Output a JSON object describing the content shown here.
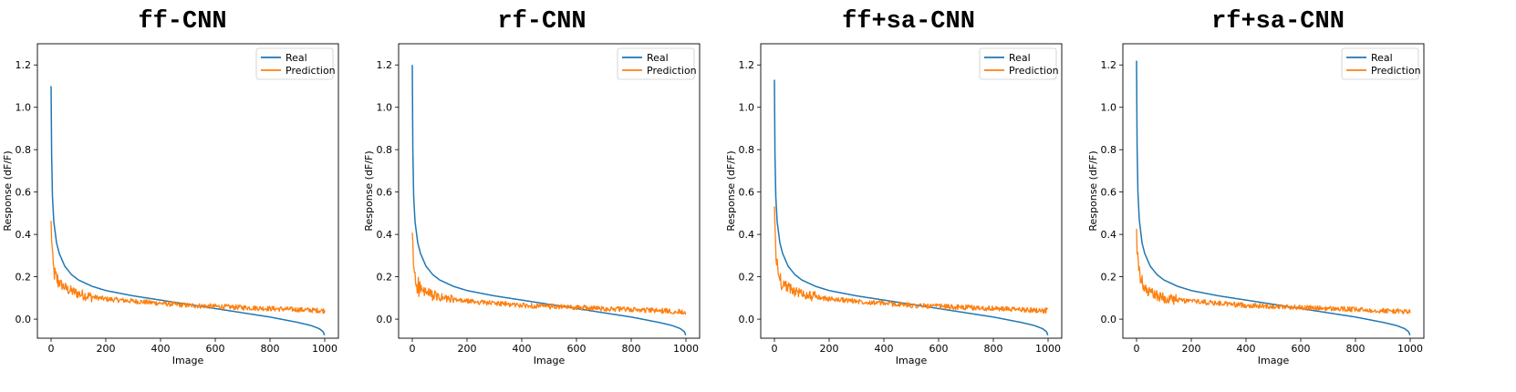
{
  "chart_data": [
    {
      "type": "line",
      "title": "ff-CNN",
      "xlabel": "Image",
      "ylabel": "Response (dF/F)",
      "xlim": [
        -50,
        1050
      ],
      "ylim": [
        -0.09,
        1.3
      ],
      "x_ticks": [
        0,
        200,
        400,
        600,
        800,
        1000
      ],
      "y_ticks": [
        0.0,
        0.2,
        0.4,
        0.6,
        0.8,
        1.0,
        1.2
      ],
      "x_tick_labels": [
        "0",
        "200",
        "400",
        "600",
        "800",
        "1000"
      ],
      "y_tick_labels": [
        "0.0",
        "0.2",
        "0.4",
        "0.6",
        "0.8",
        "1.0",
        "1.2"
      ],
      "legend_position": "top-right",
      "series": [
        {
          "name": "Real",
          "color": "#1f77b4",
          "x": [
            0,
            2,
            5,
            10,
            20,
            30,
            50,
            75,
            100,
            150,
            200,
            300,
            400,
            500,
            600,
            700,
            800,
            900,
            950,
            980,
            995,
            1000
          ],
          "y": [
            1.1,
            0.78,
            0.58,
            0.46,
            0.36,
            0.31,
            0.25,
            0.21,
            0.185,
            0.155,
            0.135,
            0.11,
            0.09,
            0.07,
            0.05,
            0.03,
            0.01,
            -0.015,
            -0.03,
            -0.045,
            -0.06,
            -0.08
          ]
        },
        {
          "name": "Prediction",
          "color": "#ff7f0e",
          "x": [
            0,
            3,
            6,
            10,
            15,
            25,
            40,
            60,
            80,
            100,
            150,
            200,
            300,
            400,
            500,
            600,
            700,
            800,
            900,
            1000
          ],
          "y": [
            0.45,
            0.36,
            0.27,
            0.23,
            0.2,
            0.18,
            0.16,
            0.14,
            0.13,
            0.12,
            0.105,
            0.095,
            0.085,
            0.075,
            0.065,
            0.06,
            0.055,
            0.05,
            0.045,
            0.04
          ]
        }
      ]
    },
    {
      "type": "line",
      "title": "rf-CNN",
      "xlabel": "Image",
      "ylabel": "Response (dF/F)",
      "xlim": [
        -50,
        1050
      ],
      "ylim": [
        -0.09,
        1.3
      ],
      "x_ticks": [
        0,
        200,
        400,
        600,
        800,
        1000
      ],
      "y_ticks": [
        0.0,
        0.2,
        0.4,
        0.6,
        0.8,
        1.0,
        1.2
      ],
      "x_tick_labels": [
        "0",
        "200",
        "400",
        "600",
        "800",
        "1000"
      ],
      "y_tick_labels": [
        "0.0",
        "0.2",
        "0.4",
        "0.6",
        "0.8",
        "1.0",
        "1.2"
      ],
      "legend_position": "top-right",
      "series": [
        {
          "name": "Real",
          "color": "#1f77b4",
          "x": [
            0,
            2,
            5,
            10,
            20,
            30,
            50,
            75,
            100,
            150,
            200,
            300,
            400,
            500,
            600,
            700,
            800,
            900,
            950,
            980,
            995,
            1000
          ],
          "y": [
            1.2,
            0.8,
            0.58,
            0.46,
            0.36,
            0.31,
            0.25,
            0.21,
            0.185,
            0.155,
            0.135,
            0.11,
            0.09,
            0.07,
            0.05,
            0.03,
            0.01,
            -0.015,
            -0.03,
            -0.045,
            -0.06,
            -0.08
          ]
        },
        {
          "name": "Prediction",
          "color": "#ff7f0e",
          "x": [
            0,
            3,
            6,
            10,
            15,
            25,
            40,
            60,
            80,
            100,
            150,
            200,
            300,
            400,
            500,
            600,
            700,
            800,
            900,
            1000
          ],
          "y": [
            0.39,
            0.3,
            0.24,
            0.2,
            0.17,
            0.15,
            0.13,
            0.12,
            0.11,
            0.1,
            0.09,
            0.085,
            0.075,
            0.065,
            0.06,
            0.055,
            0.05,
            0.045,
            0.04,
            0.035
          ]
        }
      ]
    },
    {
      "type": "line",
      "title": "ff+sa-CNN",
      "xlabel": "Image",
      "ylabel": "Response (dF/F)",
      "xlim": [
        -50,
        1050
      ],
      "ylim": [
        -0.09,
        1.3
      ],
      "x_ticks": [
        0,
        200,
        400,
        600,
        800,
        1000
      ],
      "y_ticks": [
        0.0,
        0.2,
        0.4,
        0.6,
        0.8,
        1.0,
        1.2
      ],
      "x_tick_labels": [
        "0",
        "200",
        "400",
        "600",
        "800",
        "1000"
      ],
      "y_tick_labels": [
        "0.0",
        "0.2",
        "0.4",
        "0.6",
        "0.8",
        "1.0",
        "1.2"
      ],
      "legend_position": "top-right",
      "series": [
        {
          "name": "Real",
          "color": "#1f77b4",
          "x": [
            0,
            2,
            5,
            10,
            20,
            30,
            50,
            75,
            100,
            150,
            200,
            300,
            400,
            500,
            600,
            700,
            800,
            900,
            950,
            980,
            995,
            1000
          ],
          "y": [
            1.13,
            0.78,
            0.58,
            0.46,
            0.36,
            0.31,
            0.25,
            0.21,
            0.185,
            0.155,
            0.135,
            0.11,
            0.09,
            0.07,
            0.05,
            0.03,
            0.01,
            -0.015,
            -0.03,
            -0.045,
            -0.06,
            -0.08
          ]
        },
        {
          "name": "Prediction",
          "color": "#ff7f0e",
          "x": [
            0,
            3,
            6,
            10,
            15,
            25,
            40,
            60,
            80,
            100,
            150,
            200,
            300,
            400,
            500,
            600,
            700,
            800,
            900,
            1000
          ],
          "y": [
            0.51,
            0.4,
            0.3,
            0.25,
            0.21,
            0.18,
            0.16,
            0.14,
            0.13,
            0.12,
            0.105,
            0.095,
            0.085,
            0.075,
            0.065,
            0.06,
            0.055,
            0.05,
            0.045,
            0.04
          ]
        }
      ]
    },
    {
      "type": "line",
      "title": "rf+sa-CNN",
      "xlabel": "Image",
      "ylabel": "Response (dF/F)",
      "xlim": [
        -50,
        1050
      ],
      "ylim": [
        -0.09,
        1.3
      ],
      "x_ticks": [
        0,
        200,
        400,
        600,
        800,
        1000
      ],
      "y_ticks": [
        0.0,
        0.2,
        0.4,
        0.6,
        0.8,
        1.0,
        1.2
      ],
      "x_tick_labels": [
        "0",
        "200",
        "400",
        "600",
        "800",
        "1000"
      ],
      "y_tick_labels": [
        "0.0",
        "0.2",
        "0.4",
        "0.6",
        "0.8",
        "1.0",
        "1.2"
      ],
      "legend_position": "top-right",
      "series": [
        {
          "name": "Real",
          "color": "#1f77b4",
          "x": [
            0,
            2,
            5,
            10,
            20,
            30,
            50,
            75,
            100,
            150,
            200,
            300,
            400,
            500,
            600,
            700,
            800,
            900,
            950,
            980,
            995,
            1000
          ],
          "y": [
            1.22,
            0.82,
            0.6,
            0.47,
            0.36,
            0.31,
            0.25,
            0.21,
            0.185,
            0.155,
            0.135,
            0.11,
            0.09,
            0.07,
            0.05,
            0.03,
            0.01,
            -0.015,
            -0.03,
            -0.045,
            -0.06,
            -0.08
          ]
        },
        {
          "name": "Prediction",
          "color": "#ff7f0e",
          "x": [
            0,
            3,
            6,
            10,
            15,
            25,
            40,
            60,
            80,
            100,
            150,
            200,
            300,
            400,
            500,
            600,
            700,
            800,
            900,
            1000
          ],
          "y": [
            0.4,
            0.31,
            0.25,
            0.21,
            0.18,
            0.15,
            0.13,
            0.12,
            0.11,
            0.1,
            0.09,
            0.085,
            0.075,
            0.065,
            0.06,
            0.055,
            0.05,
            0.045,
            0.04,
            0.035
          ]
        }
      ]
    }
  ]
}
